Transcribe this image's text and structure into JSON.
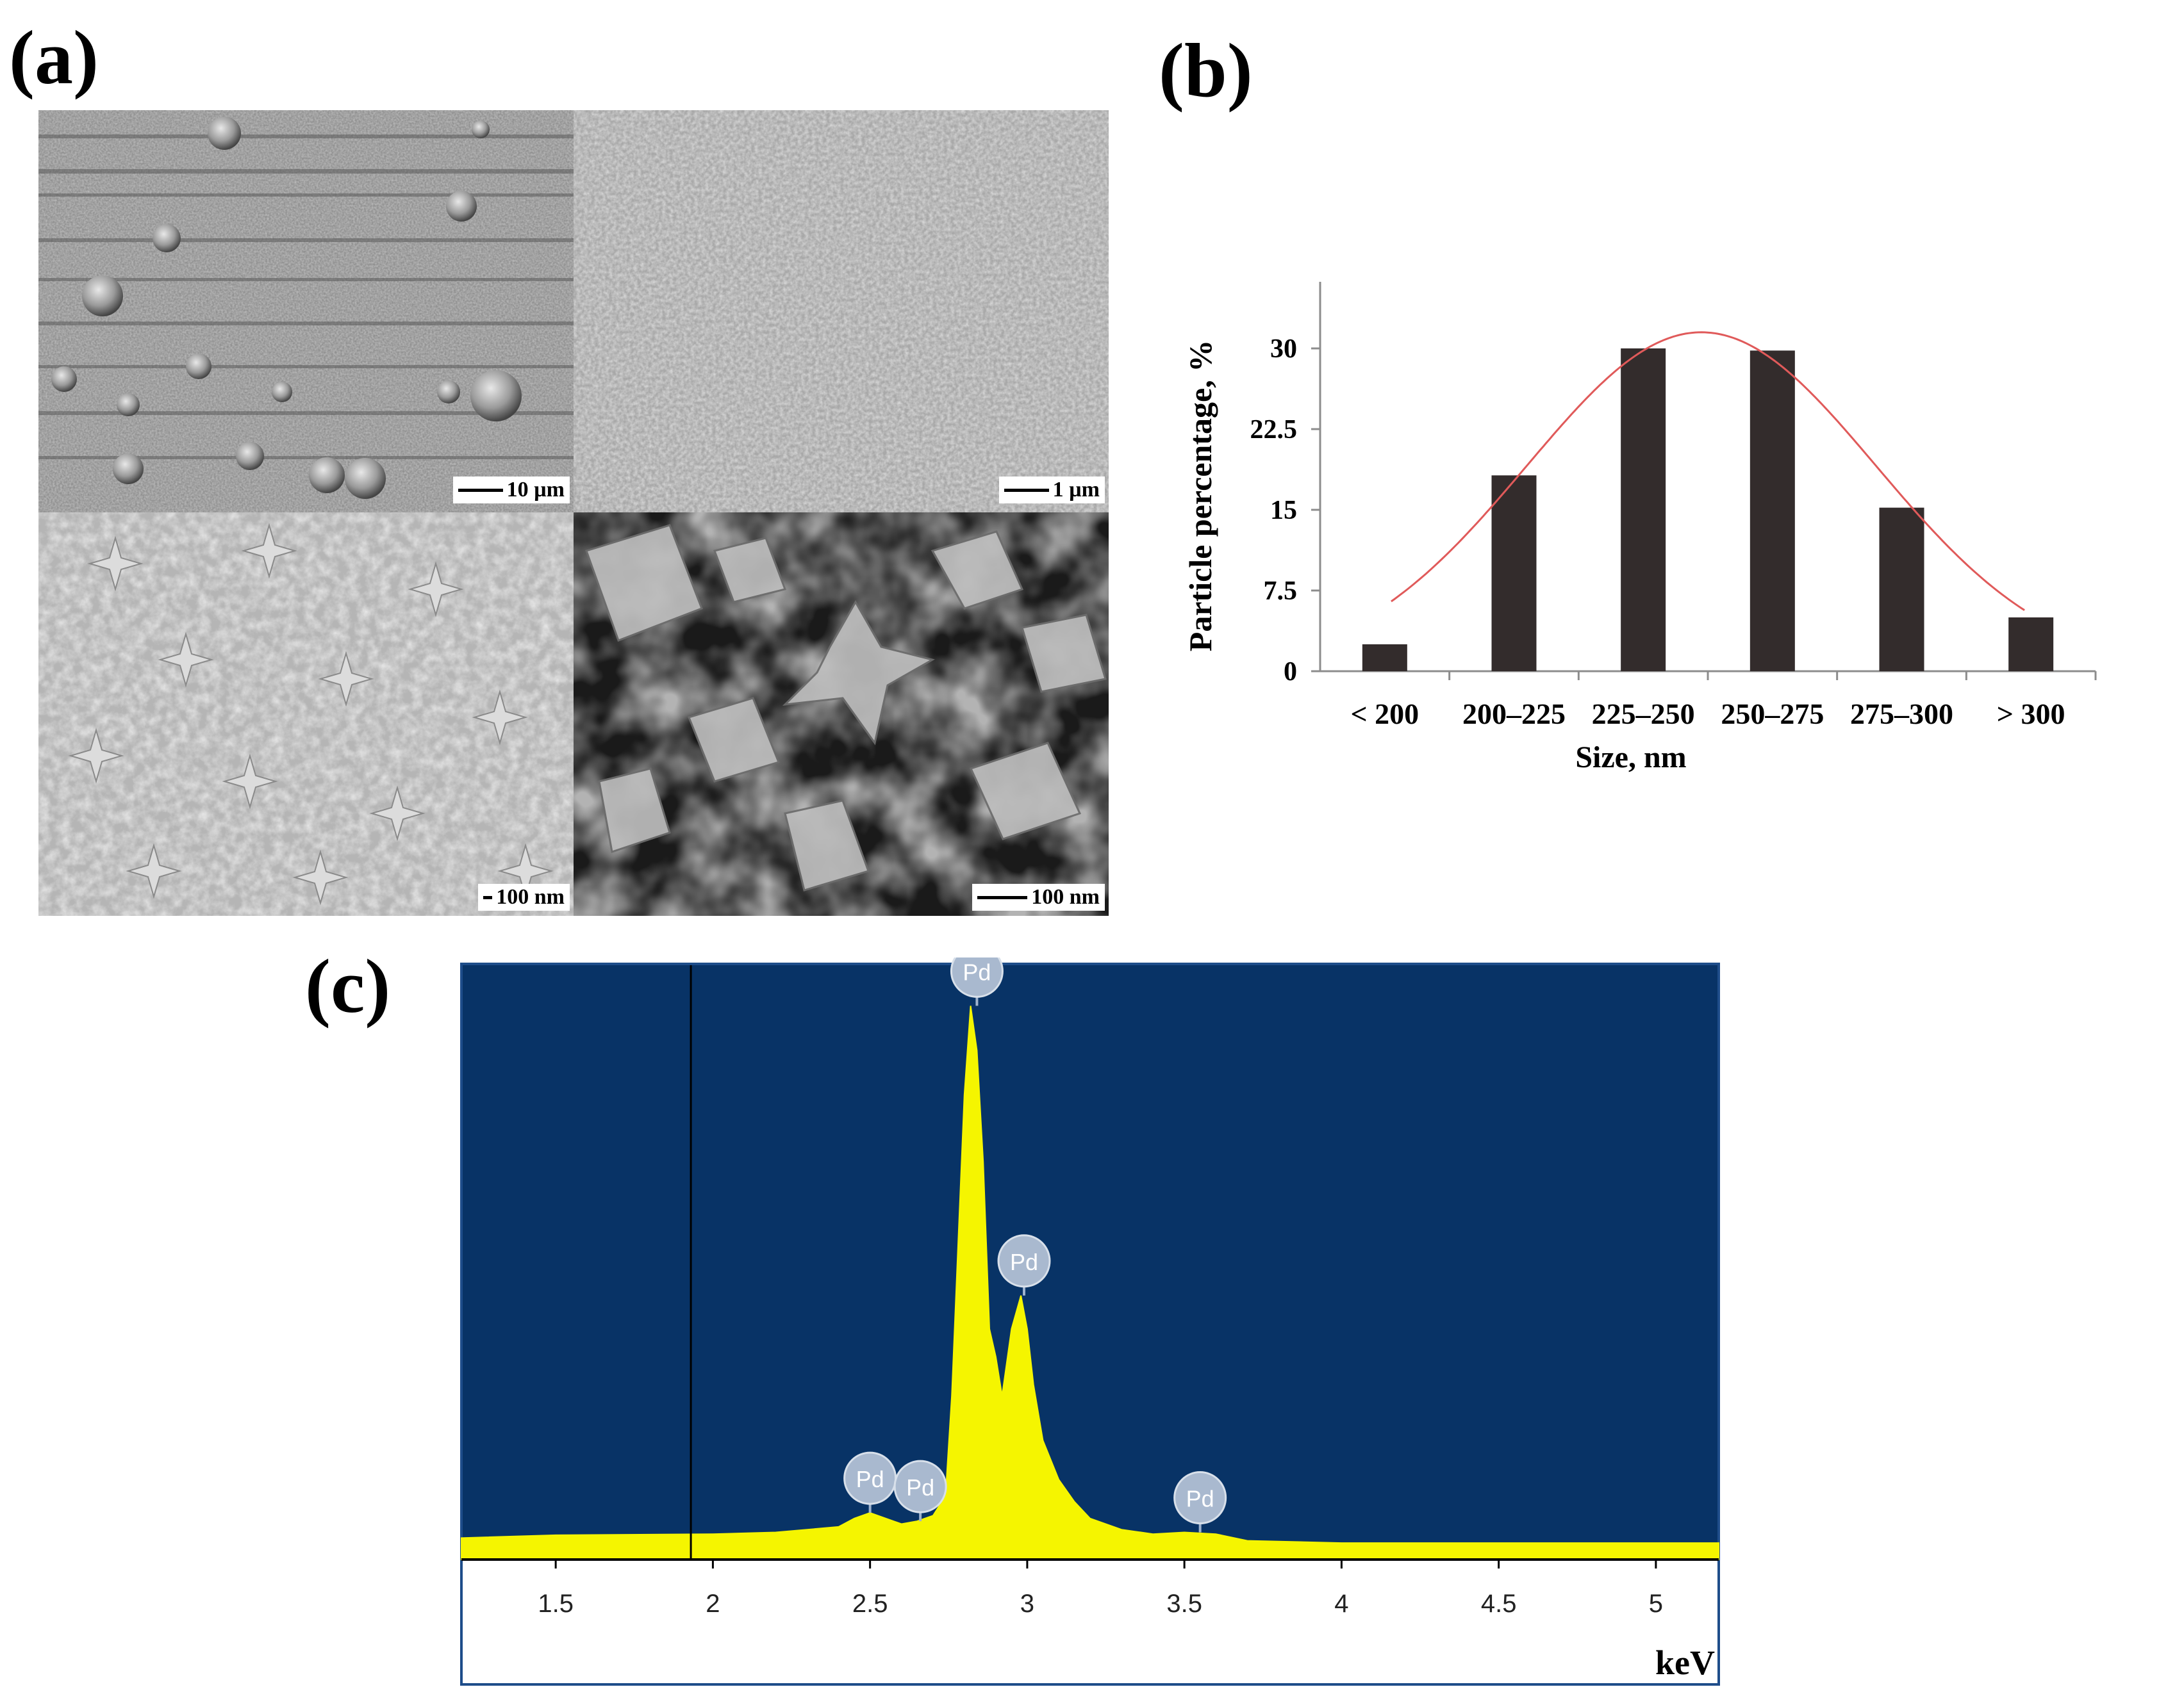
{
  "panels": {
    "a_label": "(a)",
    "b_label": "(b)",
    "c_label": "(c)"
  },
  "sem_images": [
    {
      "scale_label": "10 µm",
      "texture": "coarse-spheres"
    },
    {
      "scale_label": "1 µm",
      "texture": "fine-grain"
    },
    {
      "scale_label": "100 nm",
      "texture": "stars-light"
    },
    {
      "scale_label": "100 nm",
      "texture": "crystals-dark"
    }
  ],
  "chart_data": [
    {
      "type": "bar",
      "categories": [
        "< 200",
        "200–225",
        "225–250",
        "250–275",
        "275–300",
        "> 300"
      ],
      "values": [
        2.5,
        18.2,
        30.0,
        29.8,
        15.2,
        5.0
      ],
      "xlabel": "Size, nm",
      "ylabel": "Particle percentage, %",
      "ylim": [
        0,
        35
      ],
      "yticks": [
        0,
        7.5,
        15,
        22.5,
        30
      ],
      "ytick_labels": [
        "0",
        "7.5",
        "15",
        "22.5",
        "30"
      ],
      "fit_curve": {
        "type": "gaussian",
        "color": "#e05a5a",
        "peak_x": 2.45,
        "peak_y": 31.5,
        "sigma": 1.35
      },
      "bar_color": "#332c2c",
      "grid": false
    },
    {
      "type": "area",
      "xlabel": "keV",
      "xlim": [
        1.2,
        5.2
      ],
      "xticks": [
        1.5,
        2,
        2.5,
        3,
        3.5,
        4,
        4.5,
        5
      ],
      "xtick_labels": [
        "1.5",
        "2",
        "2.5",
        "3",
        "3.5",
        "4",
        "4.5",
        "5"
      ],
      "ylim": [
        0,
        100
      ],
      "background": "#083366",
      "fill_color": "#f5f500",
      "cursor_x": 1.93,
      "spectrum": [
        [
          1.2,
          2.5
        ],
        [
          1.5,
          3.0
        ],
        [
          2.0,
          3.2
        ],
        [
          2.2,
          3.5
        ],
        [
          2.4,
          4.5
        ],
        [
          2.45,
          6.0
        ],
        [
          2.5,
          7.0
        ],
        [
          2.55,
          6.0
        ],
        [
          2.6,
          5.0
        ],
        [
          2.65,
          5.5
        ],
        [
          2.7,
          6.5
        ],
        [
          2.74,
          10
        ],
        [
          2.76,
          28
        ],
        [
          2.78,
          55
        ],
        [
          2.8,
          82
        ],
        [
          2.82,
          98
        ],
        [
          2.84,
          90
        ],
        [
          2.86,
          70
        ],
        [
          2.88,
          40
        ],
        [
          2.9,
          35
        ],
        [
          2.92,
          28
        ],
        [
          2.95,
          40
        ],
        [
          2.98,
          46
        ],
        [
          3.0,
          40
        ],
        [
          3.02,
          30
        ],
        [
          3.05,
          20
        ],
        [
          3.1,
          13
        ],
        [
          3.15,
          9
        ],
        [
          3.2,
          6
        ],
        [
          3.3,
          4
        ],
        [
          3.4,
          3.2
        ],
        [
          3.5,
          3.5
        ],
        [
          3.6,
          3.2
        ],
        [
          3.7,
          2.0
        ],
        [
          4.0,
          1.6
        ],
        [
          5.2,
          1.6
        ]
      ],
      "peak_labels": [
        {
          "label": "Pd",
          "x": 2.84,
          "y": 98
        },
        {
          "label": "Pd",
          "x": 2.99,
          "y": 46
        },
        {
          "label": "Pd",
          "x": 2.5,
          "y": 7.0
        },
        {
          "label": "Pd",
          "x": 2.66,
          "y": 5.5
        },
        {
          "label": "Pd",
          "x": 3.55,
          "y": 3.5
        }
      ],
      "grid": false
    }
  ]
}
